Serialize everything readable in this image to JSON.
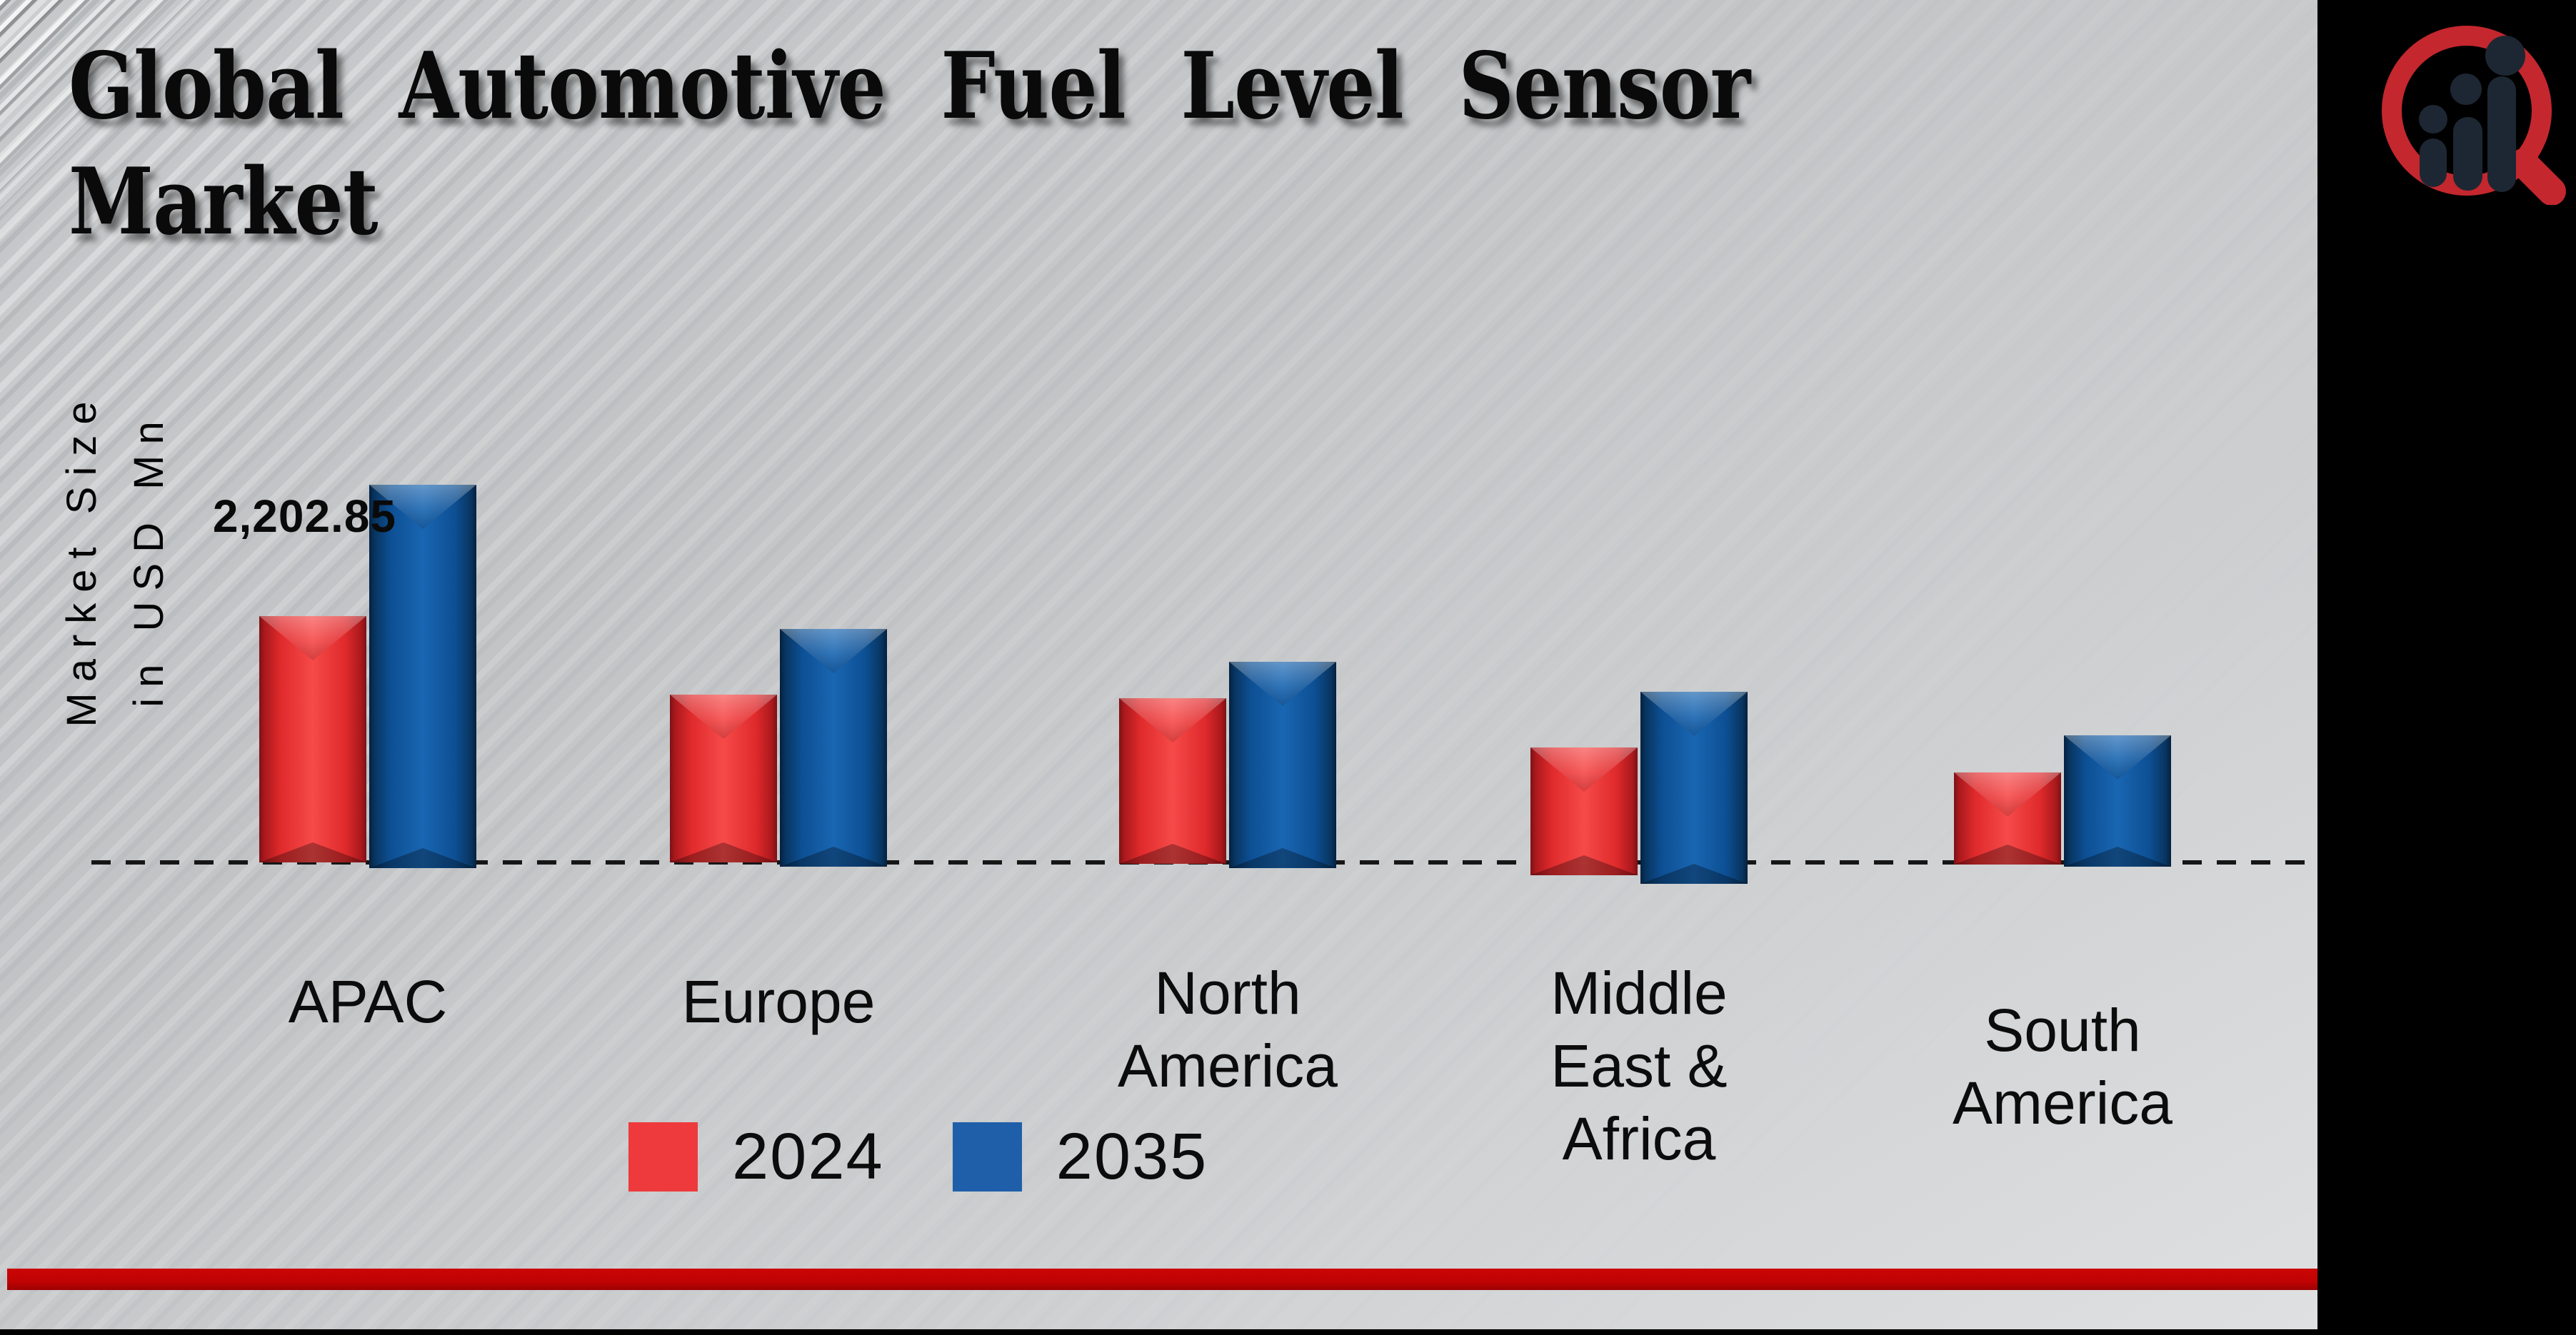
{
  "title": {
    "line1": "Global Automotive Fuel Level Sensor",
    "line2": "Market"
  },
  "y_axis": {
    "line1": "Market Size",
    "line2": "in USD Mn"
  },
  "annotation": {
    "text": "2,202.85"
  },
  "legend": [
    {
      "label": "2024",
      "color": "#ee3a3c"
    },
    {
      "label": "2035",
      "color": "#1f5fa9"
    }
  ],
  "chart_data": {
    "type": "bar",
    "title": "Global Automotive Fuel Level Sensor Market",
    "ylabel": "Market Size in USD Mn",
    "categories": [
      "APAC",
      "Europe",
      "North America",
      "Middle East & Africa",
      "South America"
    ],
    "category_lines": [
      [
        "APAC"
      ],
      [
        "Europe"
      ],
      [
        "North",
        "America"
      ],
      [
        "Middle",
        "East &",
        "Africa"
      ],
      [
        "South",
        "America"
      ]
    ],
    "series": [
      {
        "name": "2024",
        "color": "#e8302f",
        "values": [
          2202.85,
          1500,
          1469,
          1028,
          805
        ]
      },
      {
        "name": "2035",
        "color": "#0f5aa8",
        "values": [
          3378,
          2088,
          1794,
          1526,
          1137
        ]
      }
    ],
    "data_labels": [
      {
        "series": "2024",
        "category": "APAC",
        "text": "2,202.85"
      }
    ],
    "axis": {
      "baseline_value": 0,
      "grid": false,
      "baseline_style": "dashed"
    },
    "legend_position": "bottom"
  },
  "logo": {
    "name": "market-research-magnifier-logo",
    "ring_color": "#c4272e",
    "figure_color": "#1d2733"
  },
  "colors": {
    "background_top_left": "#c9cbcd",
    "background_bottom_right": "#e2e3e4",
    "sidebar": "#000000",
    "footer_bar": "#c00303",
    "text": "#0a0a0a"
  }
}
